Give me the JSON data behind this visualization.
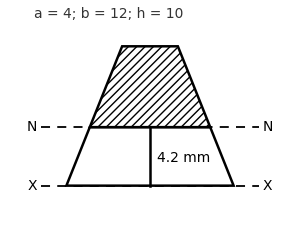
{
  "title": "a = 4; b = 12; h = 10",
  "title_fontsize": 10,
  "title_color": "#333333",
  "annotation": "4.2 mm",
  "annotation_fontsize": 10,
  "background_color": "#ffffff",
  "trapezoid": {
    "top_width": 4,
    "bottom_width": 12,
    "height": 10,
    "neutral_axis_y": 4.2
  },
  "line_color": "#000000",
  "xlim": [
    -8.5,
    8.5
  ],
  "ylim": [
    -2.5,
    13.0
  ]
}
